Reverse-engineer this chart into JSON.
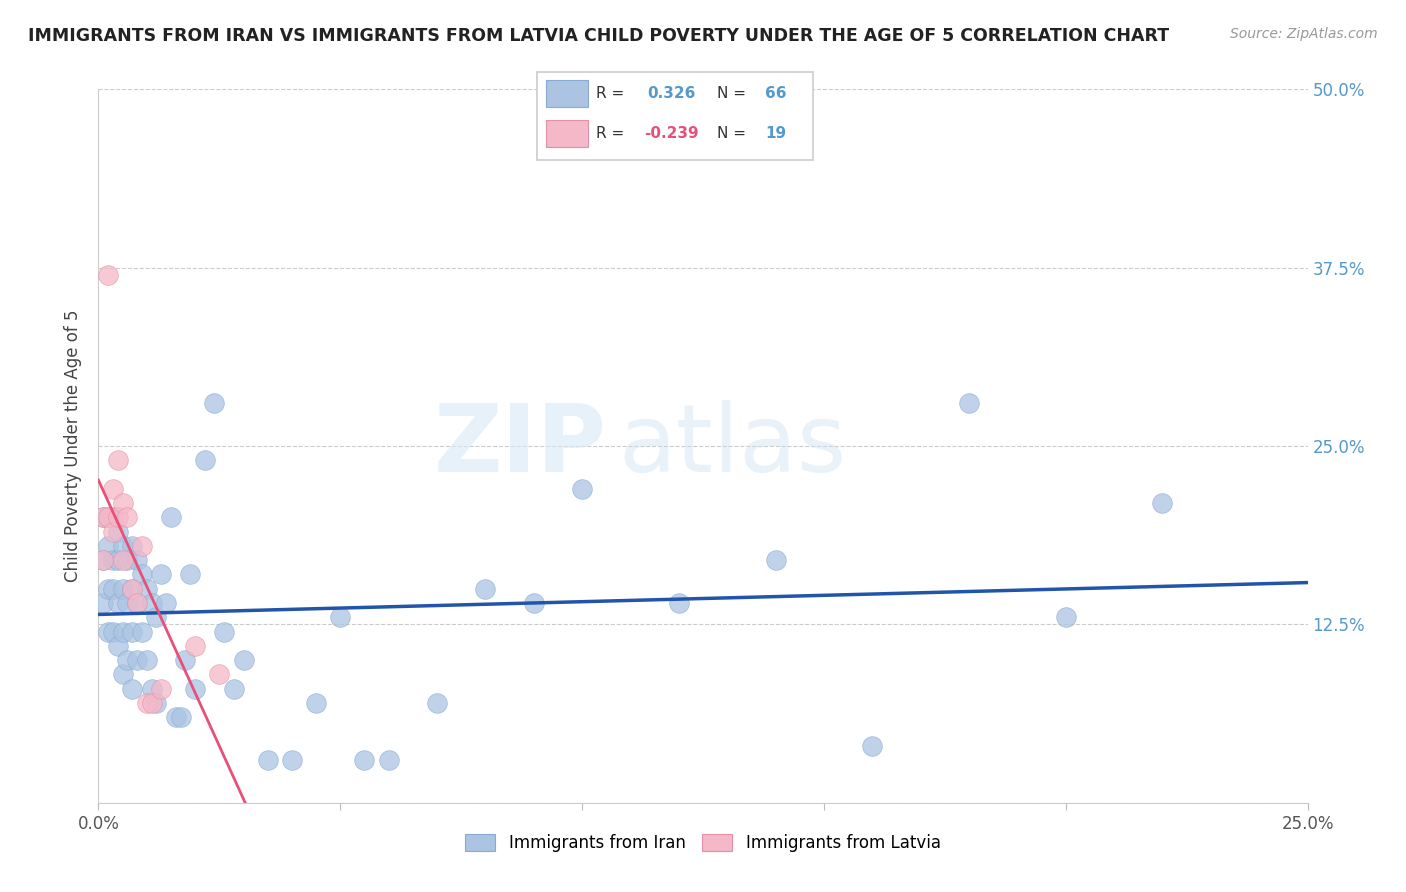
{
  "title": "IMMIGRANTS FROM IRAN VS IMMIGRANTS FROM LATVIA CHILD POVERTY UNDER THE AGE OF 5 CORRELATION CHART",
  "source": "Source: ZipAtlas.com",
  "ylabel": "Child Poverty Under the Age of 5",
  "xlim": [
    0,
    0.25
  ],
  "ylim": [
    0,
    0.5
  ],
  "xticks": [
    0.0,
    0.05,
    0.1,
    0.15,
    0.2,
    0.25
  ],
  "yticks": [
    0.0,
    0.125,
    0.25,
    0.375,
    0.5
  ],
  "iran_color": "#aac4e2",
  "iran_line_color": "#2255aa",
  "latvia_color": "#f5b8c8",
  "latvia_line_color": "#e8507a",
  "iran_R": 0.326,
  "iran_N": 66,
  "latvia_R": -0.239,
  "latvia_N": 19,
  "watermark_zip": "ZIP",
  "watermark_atlas": "atlas",
  "legend_iran": "Immigrants from Iran",
  "legend_latvia": "Immigrants from Latvia",
  "iran_scatter_x": [
    0.001,
    0.001,
    0.001,
    0.002,
    0.002,
    0.002,
    0.002,
    0.003,
    0.003,
    0.003,
    0.003,
    0.004,
    0.004,
    0.004,
    0.004,
    0.005,
    0.005,
    0.005,
    0.005,
    0.006,
    0.006,
    0.006,
    0.007,
    0.007,
    0.007,
    0.007,
    0.008,
    0.008,
    0.008,
    0.009,
    0.009,
    0.01,
    0.01,
    0.011,
    0.011,
    0.012,
    0.012,
    0.013,
    0.014,
    0.015,
    0.016,
    0.017,
    0.018,
    0.019,
    0.02,
    0.022,
    0.024,
    0.026,
    0.028,
    0.03,
    0.035,
    0.04,
    0.045,
    0.05,
    0.055,
    0.06,
    0.07,
    0.08,
    0.09,
    0.1,
    0.12,
    0.14,
    0.16,
    0.18,
    0.2,
    0.22
  ],
  "iran_scatter_y": [
    0.2,
    0.17,
    0.14,
    0.2,
    0.18,
    0.15,
    0.12,
    0.2,
    0.17,
    0.15,
    0.12,
    0.19,
    0.17,
    0.14,
    0.11,
    0.18,
    0.15,
    0.12,
    0.09,
    0.17,
    0.14,
    0.1,
    0.18,
    0.15,
    0.12,
    0.08,
    0.17,
    0.14,
    0.1,
    0.16,
    0.12,
    0.15,
    0.1,
    0.14,
    0.08,
    0.13,
    0.07,
    0.16,
    0.14,
    0.2,
    0.06,
    0.06,
    0.1,
    0.16,
    0.08,
    0.24,
    0.28,
    0.12,
    0.08,
    0.1,
    0.03,
    0.03,
    0.07,
    0.13,
    0.03,
    0.03,
    0.07,
    0.15,
    0.14,
    0.22,
    0.14,
    0.17,
    0.04,
    0.28,
    0.13,
    0.21
  ],
  "latvia_scatter_x": [
    0.001,
    0.001,
    0.002,
    0.002,
    0.003,
    0.003,
    0.004,
    0.004,
    0.005,
    0.005,
    0.006,
    0.007,
    0.008,
    0.009,
    0.01,
    0.011,
    0.013,
    0.02,
    0.025
  ],
  "latvia_scatter_y": [
    0.2,
    0.17,
    0.37,
    0.2,
    0.22,
    0.19,
    0.24,
    0.2,
    0.21,
    0.17,
    0.2,
    0.15,
    0.14,
    0.18,
    0.07,
    0.07,
    0.08,
    0.11,
    0.09
  ]
}
